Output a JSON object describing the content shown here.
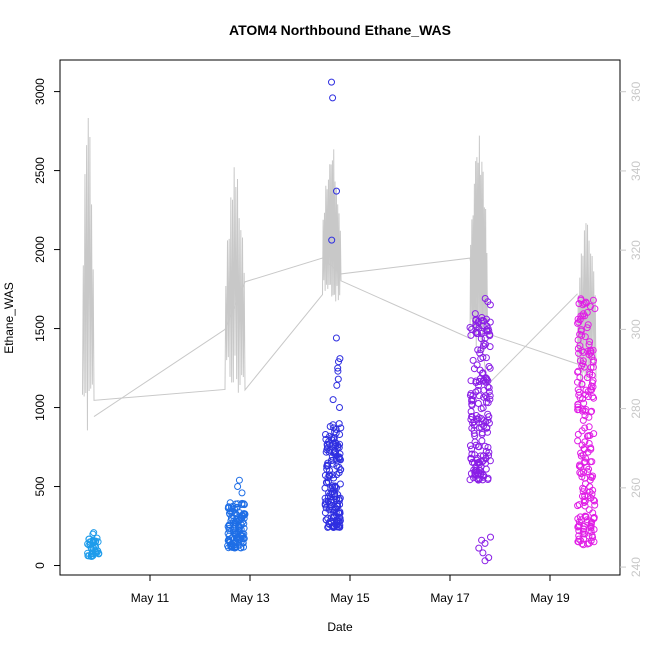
{
  "chart_data": {
    "type": "scatter",
    "title": "ATOM4 Northbound Ethane_WAS",
    "xlabel": "Date",
    "ylabel": "Ethane_WAS",
    "y2label": "",
    "x_ticks": [
      "May 11",
      "May 13",
      "May 15",
      "May 17",
      "May 19"
    ],
    "x_tick_days": [
      11,
      13,
      15,
      17,
      19
    ],
    "xlim_days": [
      9.2,
      20.4
    ],
    "ylim": [
      -60,
      3200
    ],
    "yticks": [
      0,
      500,
      1000,
      1500,
      2000,
      2500,
      3000
    ],
    "y2lim": [
      238,
      368
    ],
    "y2ticks": [
      240,
      260,
      280,
      300,
      320,
      340,
      360
    ],
    "colors": {
      "axes": "#000000",
      "secondary_axis": "#c8c8c8",
      "line": "#c8c8c8"
    },
    "scatter_groups": [
      {
        "day_range": [
          9.75,
          9.98
        ],
        "y_range": [
          50,
          215
        ],
        "color": "#1e9ceb",
        "count": 40
      },
      {
        "day_range": [
          12.55,
          12.9
        ],
        "y_range": [
          110,
          400
        ],
        "color": "#1e6ee6",
        "count": 120,
        "extra_values": [
          460,
          500,
          540
        ]
      },
      {
        "day_range": [
          14.5,
          14.82
        ],
        "y_range": [
          240,
          900
        ],
        "color": "#2f2fe0",
        "count": 160,
        "extra_values": [
          1000,
          1050,
          1140,
          1180,
          1230,
          1250,
          1290,
          1310,
          1440,
          2060,
          2370,
          2960,
          3060
        ]
      },
      {
        "day_range": [
          17.4,
          17.82
        ],
        "y_range": [
          540,
          1600
        ],
        "color": "#8a1ee6",
        "count": 180,
        "extra_values": [
          30,
          50,
          80,
          110,
          140,
          160,
          180,
          1650,
          1670,
          1690
        ]
      },
      {
        "day_range": [
          19.55,
          19.9
        ],
        "y_range": [
          130,
          1690
        ],
        "color": "#e01ee6",
        "count": 200
      }
    ],
    "line_segments": [
      {
        "day_range": [
          9.65,
          9.88
        ],
        "y2_range": [
          262,
          355
        ],
        "oscillations": 7
      },
      {
        "day_range": [
          12.5,
          12.9
        ],
        "y2_range": [
          275,
          342
        ],
        "oscillations": 12
      },
      {
        "day_range": [
          14.45,
          14.82
        ],
        "y2_range": [
          300,
          347
        ],
        "oscillations": 14
      },
      {
        "day_range": [
          17.4,
          17.75
        ],
        "y2_range": [
          285,
          350
        ],
        "oscillations": 14
      },
      {
        "day_range": [
          19.55,
          19.92
        ],
        "y2_range": [
          280,
          328
        ],
        "oscillations": 12
      }
    ],
    "connector_points_y2": [
      [
        9.88,
        278
      ],
      [
        12.5,
        300
      ],
      [
        12.9,
        312
      ],
      [
        14.45,
        318
      ],
      [
        14.82,
        314
      ],
      [
        17.4,
        318
      ],
      [
        17.75,
        286
      ],
      [
        19.55,
        309
      ]
    ]
  }
}
